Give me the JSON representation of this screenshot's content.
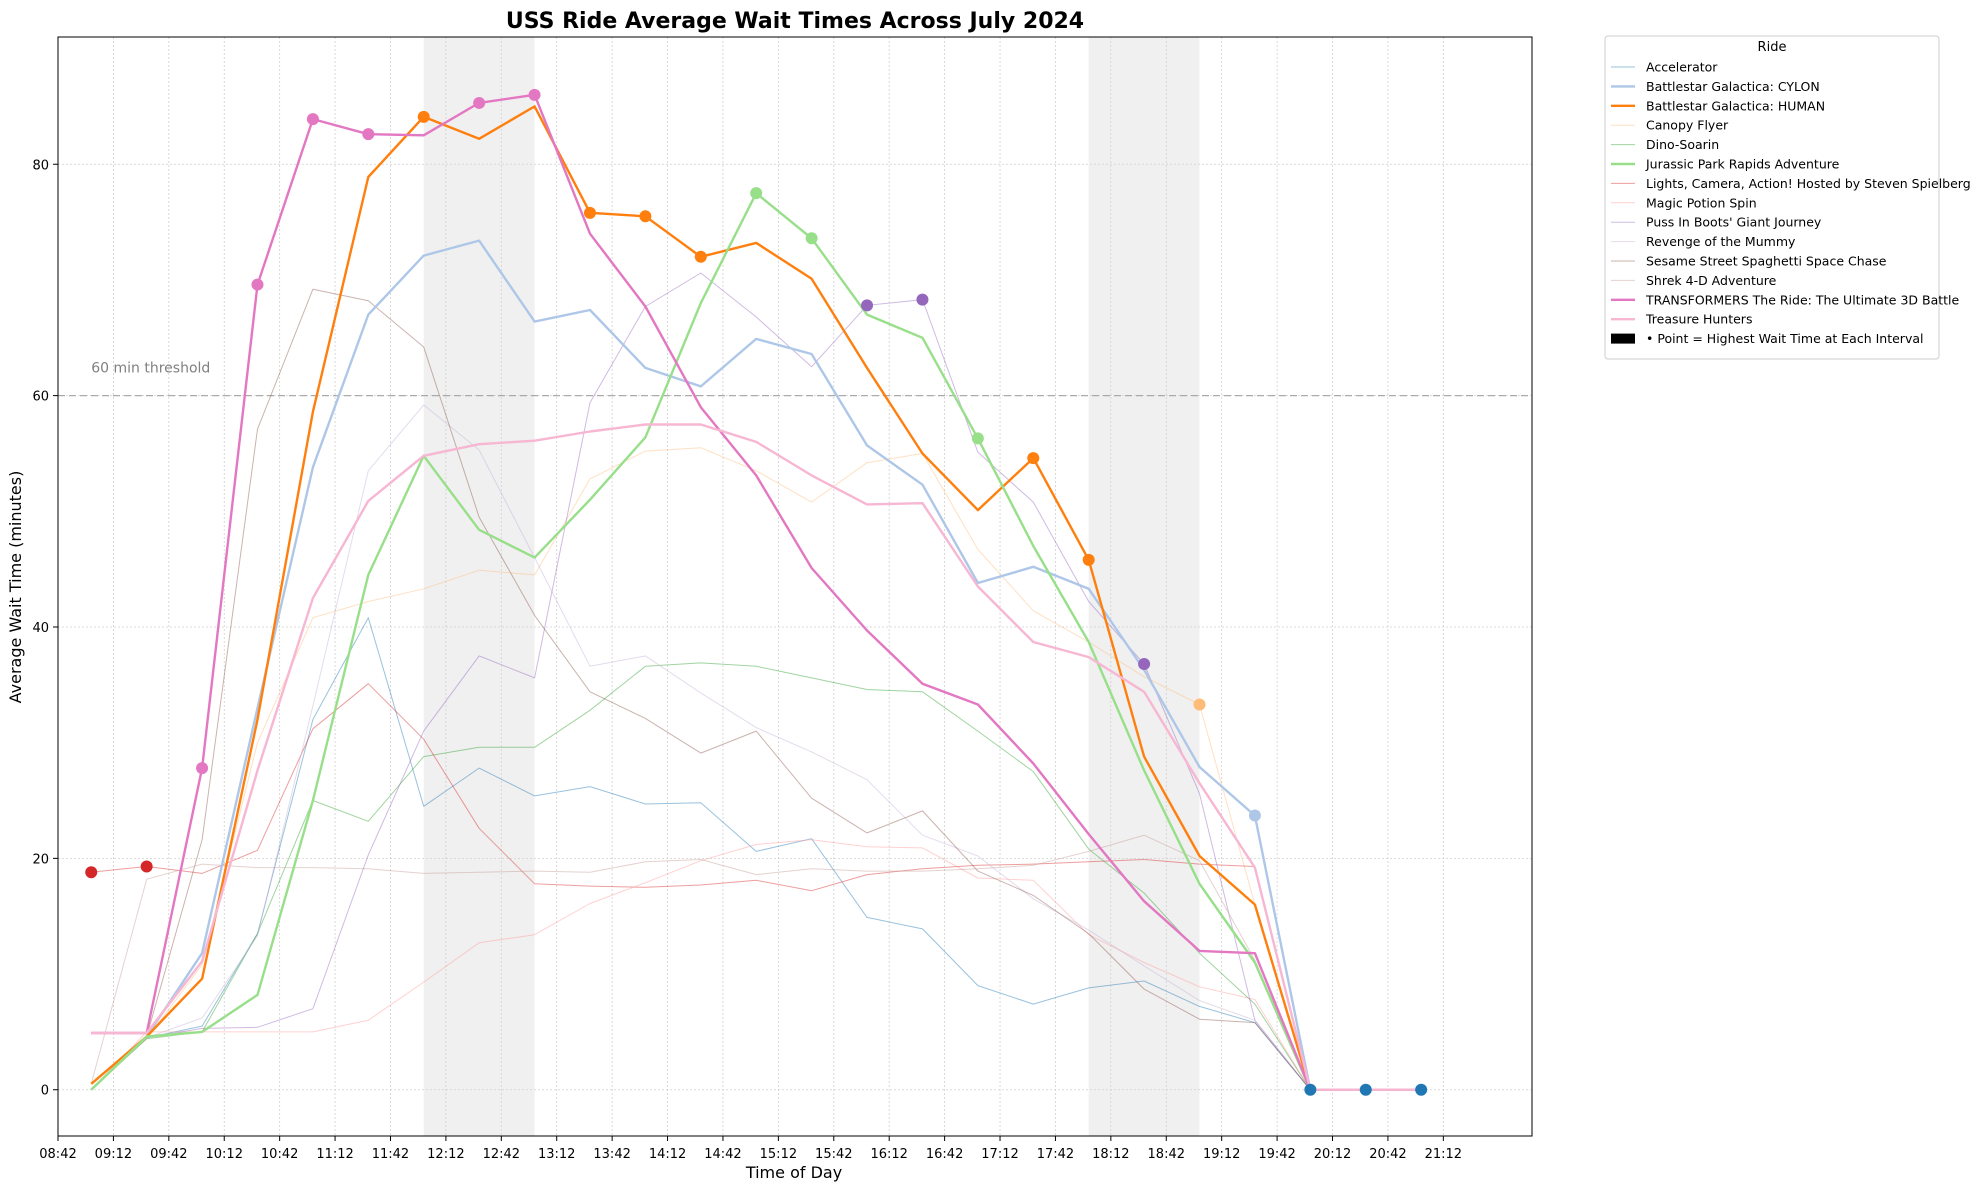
{
  "chart_data": {
    "type": "line",
    "title": "USS Ride Average Wait Times Across July 2024",
    "xlabel": "Time of Day",
    "ylabel": "Average Wait Time (minutes)",
    "xlim": [
      "08:42",
      "21:12"
    ],
    "ylim": [
      -4,
      91
    ],
    "x_ticks": [
      "08:42",
      "09:12",
      "09:42",
      "10:12",
      "10:42",
      "11:12",
      "11:42",
      "12:12",
      "12:42",
      "13:12",
      "13:42",
      "14:12",
      "14:42",
      "15:12",
      "15:42",
      "16:12",
      "16:42",
      "17:12",
      "17:42",
      "18:12",
      "18:42",
      "19:12",
      "19:42",
      "20:12",
      "20:42",
      "21:12"
    ],
    "y_ticks": [
      0,
      20,
      40,
      60,
      80
    ],
    "grid": true,
    "threshold": {
      "value": 60,
      "label": "60 min threshold"
    },
    "shaded_ranges": [
      [
        "12:00",
        "13:00"
      ],
      [
        "18:00",
        "19:00"
      ]
    ],
    "x": [
      "09:00",
      "09:30",
      "10:00",
      "10:30",
      "11:00",
      "11:30",
      "12:00",
      "12:30",
      "13:00",
      "13:30",
      "14:00",
      "14:30",
      "15:00",
      "15:30",
      "16:00",
      "16:30",
      "17:00",
      "17:30",
      "18:00",
      "18:30",
      "19:00",
      "19:30",
      "20:00",
      "20:30",
      "21:00"
    ],
    "series": [
      {
        "name": "Accelerator",
        "color": "#1f77b4",
        "emphasis": false,
        "values": [
          0,
          4.5,
          5.5,
          13.5,
          32,
          40.8,
          24.5,
          27.8,
          25.4,
          26.2,
          24.7,
          24.8,
          20.6,
          21.7,
          14.9,
          13.9,
          9,
          7.4,
          8.8,
          9.4,
          7.2,
          5.8,
          0,
          null,
          null
        ]
      },
      {
        "name": "Battlestar Galactica: CYLON",
        "color": "#aec7e8",
        "emphasis": true,
        "values": [
          0,
          4.6,
          11.8,
          33,
          53.8,
          67,
          72.1,
          73.4,
          66.4,
          67.4,
          62.4,
          60.8,
          64.9,
          63.6,
          55.7,
          52.3,
          43.8,
          45.2,
          43.3,
          36.3,
          27.9,
          23.7,
          0,
          0,
          0
        ]
      },
      {
        "name": "Battlestar Galactica: HUMAN",
        "color": "#ff7f0e",
        "emphasis": true,
        "values": [
          0.5,
          4.6,
          9.6,
          32,
          58.6,
          78.9,
          84.1,
          82.2,
          85,
          75.8,
          75.5,
          72,
          73.2,
          70.1,
          62.4,
          55,
          50.1,
          54.6,
          45.8,
          28.8,
          20.2,
          16,
          0,
          0,
          0
        ]
      },
      {
        "name": "Canopy Flyer",
        "color": "#ffbb78",
        "emphasis": false,
        "values": [
          0,
          4.4,
          10.8,
          30,
          40.8,
          42.2,
          43.3,
          44.9,
          44.5,
          52.8,
          55.2,
          55.5,
          53.5,
          50.8,
          54.2,
          55,
          46.7,
          41.4,
          38.7,
          35.7,
          33.3,
          16,
          0,
          0,
          0
        ]
      },
      {
        "name": "Dino-Soarin",
        "color": "#2ca02c",
        "emphasis": false,
        "values": [
          0,
          4.4,
          5,
          13.5,
          25,
          23.2,
          28.8,
          29.6,
          29.6,
          32.8,
          36.6,
          36.9,
          36.6,
          35.6,
          34.6,
          34.4,
          31,
          27.5,
          20.8,
          17,
          11.8,
          7.4,
          0,
          0,
          0
        ]
      },
      {
        "name": "Jurassic Park Rapids Adventure",
        "color": "#98df8a",
        "emphasis": true,
        "values": [
          0,
          4.6,
          5,
          8.2,
          25,
          44.5,
          54.8,
          48.4,
          46,
          51,
          56.4,
          68,
          77.5,
          73.6,
          67,
          65,
          56.3,
          47,
          38.7,
          27.6,
          17.8,
          11,
          0,
          0,
          0
        ]
      },
      {
        "name": "Lights, Camera, Action! Hosted by Steven Spielberg",
        "color": "#d62728",
        "emphasis": false,
        "values": [
          18.8,
          19.3,
          18.7,
          20.7,
          31.2,
          35.1,
          30.3,
          22.6,
          17.8,
          17.6,
          17.5,
          17.7,
          18.1,
          17.2,
          18.6,
          19.1,
          19.4,
          19.5,
          19.7,
          19.9,
          19.5,
          19.3,
          0,
          0,
          0
        ]
      },
      {
        "name": "Magic Potion Spin",
        "color": "#ff9896",
        "emphasis": false,
        "values": [
          0,
          5,
          5,
          5,
          5,
          6,
          9.3,
          12.7,
          13.4,
          16.1,
          17.9,
          19.8,
          21.2,
          21.6,
          21,
          20.9,
          18.3,
          18.1,
          13.4,
          11,
          8.9,
          7.8,
          0,
          0,
          0
        ]
      },
      {
        "name": "Puss In Boots' Giant Journey",
        "color": "#9467bd",
        "emphasis": false,
        "values": [
          0,
          4.5,
          5.3,
          5.4,
          7,
          20.3,
          31,
          37.5,
          35.6,
          59.4,
          67.7,
          70.6,
          66.8,
          62.5,
          67.8,
          68.3,
          55.1,
          50.8,
          42.2,
          36.8,
          25.6,
          6,
          0,
          0,
          0
        ]
      },
      {
        "name": "Revenge of the Mummy",
        "color": "#c5b0d5",
        "emphasis": false,
        "values": [
          0,
          4.5,
          6.2,
          13.3,
          33.2,
          53.5,
          59.2,
          55.3,
          46,
          36.6,
          37.5,
          34.3,
          31.3,
          29.2,
          26.8,
          22,
          20.2,
          16.5,
          13.8,
          10.7,
          7.7,
          6,
          0,
          0,
          0
        ]
      },
      {
        "name": "Sesame Street Spaghetti Space Chase",
        "color": "#8c564b",
        "emphasis": false,
        "values": [
          0,
          4.6,
          21.6,
          57.1,
          69.2,
          68.2,
          64.2,
          49.5,
          41,
          34.4,
          32.1,
          29.1,
          31,
          25.2,
          22.2,
          24.1,
          18.9,
          16.8,
          13.5,
          8.7,
          6.1,
          5.8,
          0,
          0,
          0
        ]
      },
      {
        "name": "Shrek 4-D Adventure",
        "color": "#c49c94",
        "emphasis": false,
        "values": [
          0.5,
          18.2,
          19.5,
          19.2,
          19.2,
          19.1,
          18.7,
          18.8,
          18.9,
          18.8,
          19.7,
          19.9,
          18.6,
          19.1,
          18.9,
          18.9,
          19.1,
          19.4,
          20.6,
          22,
          19.8,
          11.2,
          0,
          0,
          0
        ]
      },
      {
        "name": "TRANSFORMERS The Ride: The Ultimate 3D Battle",
        "color": "#e377c2",
        "emphasis": true,
        "values": [
          4.9,
          4.9,
          27.8,
          69.6,
          83.9,
          82.6,
          82.5,
          85.3,
          86,
          74,
          67.7,
          59,
          53.1,
          45.1,
          39.7,
          35.1,
          33.3,
          28.2,
          22.1,
          16.3,
          12,
          11.8,
          0,
          0,
          0
        ]
      },
      {
        "name": "Treasure Hunters",
        "color": "#f7b6d2",
        "emphasis": true,
        "values": [
          4.9,
          4.9,
          11.1,
          27.6,
          42.5,
          50.9,
          54.8,
          55.8,
          56.1,
          56.9,
          57.5,
          57.5,
          56,
          53.1,
          50.6,
          50.7,
          43.5,
          38.7,
          37.4,
          34.4,
          26.5,
          19.2,
          0,
          0,
          0
        ]
      }
    ],
    "max_points": [
      {
        "x": "09:00",
        "y": 18.8,
        "series": "Lights, Camera, Action! Hosted by Steven Spielberg"
      },
      {
        "x": "09:30",
        "y": 19.3,
        "series": "Lights, Camera, Action! Hosted by Steven Spielberg"
      },
      {
        "x": "10:00",
        "y": 27.8,
        "series": "TRANSFORMERS The Ride: The Ultimate 3D Battle"
      },
      {
        "x": "10:30",
        "y": 69.6,
        "series": "TRANSFORMERS The Ride: The Ultimate 3D Battle"
      },
      {
        "x": "11:00",
        "y": 83.9,
        "series": "TRANSFORMERS The Ride: The Ultimate 3D Battle"
      },
      {
        "x": "11:30",
        "y": 82.6,
        "series": "TRANSFORMERS The Ride: The Ultimate 3D Battle"
      },
      {
        "x": "12:00",
        "y": 84.1,
        "series": "Battlestar Galactica: HUMAN"
      },
      {
        "x": "12:30",
        "y": 85.3,
        "series": "TRANSFORMERS The Ride: The Ultimate 3D Battle"
      },
      {
        "x": "13:00",
        "y": 86,
        "series": "TRANSFORMERS The Ride: The Ultimate 3D Battle"
      },
      {
        "x": "13:30",
        "y": 75.8,
        "series": "Battlestar Galactica: HUMAN"
      },
      {
        "x": "14:00",
        "y": 75.5,
        "series": "Battlestar Galactica: HUMAN"
      },
      {
        "x": "14:30",
        "y": 72,
        "series": "Battlestar Galactica: HUMAN"
      },
      {
        "x": "15:00",
        "y": 77.5,
        "series": "Jurassic Park Rapids Adventure"
      },
      {
        "x": "15:30",
        "y": 73.6,
        "series": "Jurassic Park Rapids Adventure"
      },
      {
        "x": "16:00",
        "y": 67.8,
        "series": "Puss In Boots' Giant Journey"
      },
      {
        "x": "16:30",
        "y": 68.3,
        "series": "Puss In Boots' Giant Journey"
      },
      {
        "x": "17:00",
        "y": 56.3,
        "series": "Jurassic Park Rapids Adventure"
      },
      {
        "x": "17:30",
        "y": 54.6,
        "series": "Battlestar Galactica: HUMAN"
      },
      {
        "x": "18:00",
        "y": 45.8,
        "series": "Battlestar Galactica: HUMAN"
      },
      {
        "x": "18:30",
        "y": 36.8,
        "series": "Puss In Boots' Giant Journey"
      },
      {
        "x": "19:00",
        "y": 33.3,
        "series": "Canopy Flyer"
      },
      {
        "x": "19:30",
        "y": 23.7,
        "series": "Battlestar Galactica: CYLON"
      },
      {
        "x": "20:00",
        "y": 0,
        "series": "Accelerator"
      },
      {
        "x": "20:30",
        "y": 0,
        "series": "Accelerator"
      },
      {
        "x": "21:00",
        "y": 0,
        "series": "Accelerator"
      }
    ],
    "legend": {
      "title": "Ride",
      "placement": "outside-top-right",
      "extra_entry": "• Point = Highest Wait Time at Each Interval",
      "extra_color": "#000000"
    }
  }
}
